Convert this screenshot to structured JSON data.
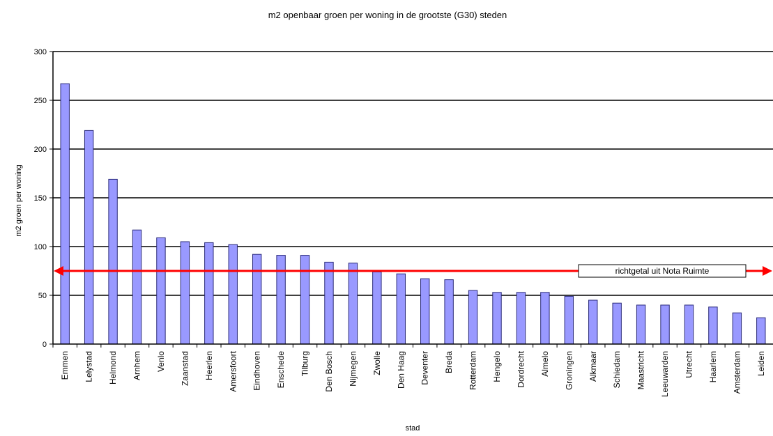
{
  "chart_data": {
    "type": "bar",
    "title": "m2 openbaar groen per woning in de grootste (G30) steden",
    "xlabel": "stad",
    "ylabel": "m2 groen per woning",
    "ylim": [
      0,
      300
    ],
    "yticks": [
      0,
      50,
      100,
      150,
      200,
      250,
      300
    ],
    "grid": true,
    "categories": [
      "Emmen",
      "Lelystad",
      "Helmond",
      "Arnhem",
      "Venlo",
      "Zaanstad",
      "Heerlen",
      "Amersfoort",
      "Eindhoven",
      "Enschede",
      "Tilburg",
      "Den Bosch",
      "Nijmegen",
      "Zwolle",
      "Den Haag",
      "Deventer",
      "Breda",
      "Rotterdam",
      "Hengelo",
      "Dordrecht",
      "Almelo",
      "Groningen",
      "Alkmaar",
      "Schiedam",
      "Maastricht",
      "Leeuwarden",
      "Utrecht",
      "Haarlem",
      "Amsterdam",
      "Leiden"
    ],
    "values": [
      267,
      219,
      169,
      117,
      109,
      105,
      104,
      102,
      92,
      91,
      91,
      84,
      83,
      74,
      72,
      67,
      66,
      55,
      53,
      53,
      53,
      49,
      45,
      42,
      40,
      40,
      40,
      38,
      32,
      27
    ],
    "reference_line": {
      "label": "richtgetal uit Nota Ruimte",
      "value": 75
    },
    "colors": {
      "bar_fill": "#9999ff",
      "bar_stroke": "#2a2a7a",
      "reference": "#ff0000",
      "grid": "#000000"
    }
  }
}
